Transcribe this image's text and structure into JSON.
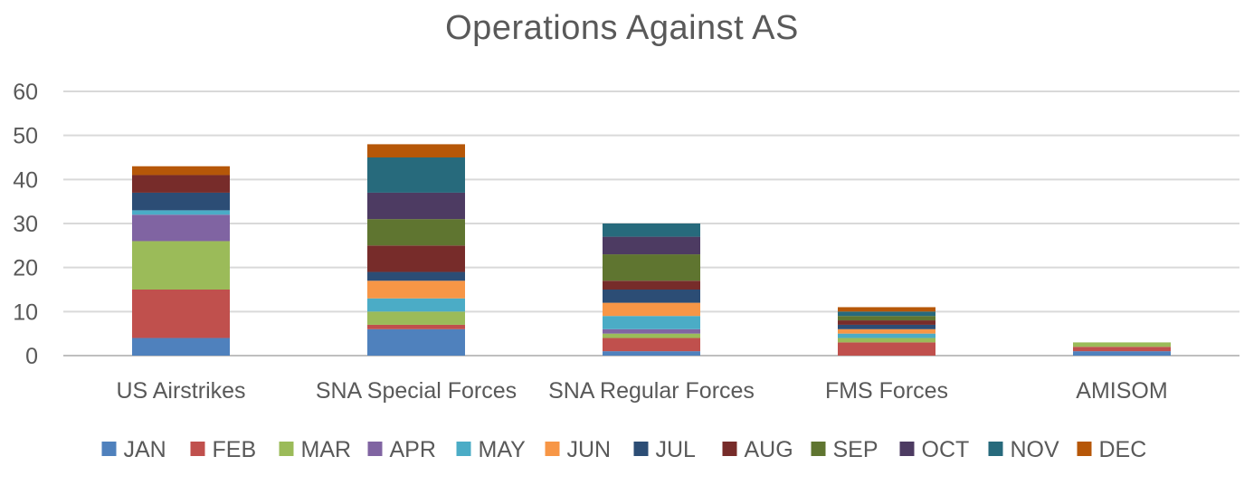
{
  "chart_data": {
    "type": "bar",
    "stacked": true,
    "title": "Operations Against AS",
    "xlabel": "",
    "ylabel": "",
    "ylim": [
      0,
      60
    ],
    "yticks": [
      "0",
      "10",
      "20",
      "30",
      "40",
      "50",
      "60"
    ],
    "grid": true,
    "legend_position": "bottom",
    "categories": [
      "US Airstrikes",
      "SNA Special Forces",
      "SNA Regular Forces",
      "FMS Forces",
      "AMISOM"
    ],
    "series": [
      {
        "name": "JAN",
        "color": "#4F81BD",
        "values": [
          4,
          6,
          1,
          0,
          1
        ]
      },
      {
        "name": "FEB",
        "color": "#C0504D",
        "values": [
          11,
          1,
          3,
          3,
          1
        ]
      },
      {
        "name": "MAR",
        "color": "#9BBB59",
        "values": [
          11,
          3,
          1,
          1,
          1
        ]
      },
      {
        "name": "APR",
        "color": "#8064A2",
        "values": [
          6,
          0,
          1,
          0,
          0
        ]
      },
      {
        "name": "MAY",
        "color": "#4BACC6",
        "values": [
          1,
          3,
          3,
          1,
          0
        ]
      },
      {
        "name": "JUN",
        "color": "#F79646",
        "values": [
          0,
          4,
          3,
          1,
          0
        ]
      },
      {
        "name": "JUL",
        "color": "#2C4D75",
        "values": [
          4,
          2,
          3,
          1,
          0
        ]
      },
      {
        "name": "AUG",
        "color": "#772C2A",
        "values": [
          4,
          6,
          2,
          1,
          0
        ]
      },
      {
        "name": "SEP",
        "color": "#5F7530",
        "values": [
          0,
          6,
          6,
          1,
          0
        ]
      },
      {
        "name": "OCT",
        "color": "#4D3B62",
        "values": [
          0,
          6,
          4,
          0,
          0
        ]
      },
      {
        "name": "NOV",
        "color": "#276A7C",
        "values": [
          0,
          8,
          3,
          1,
          0
        ]
      },
      {
        "name": "DEC",
        "color": "#B65708",
        "values": [
          2,
          3,
          0,
          1,
          0
        ]
      }
    ]
  }
}
